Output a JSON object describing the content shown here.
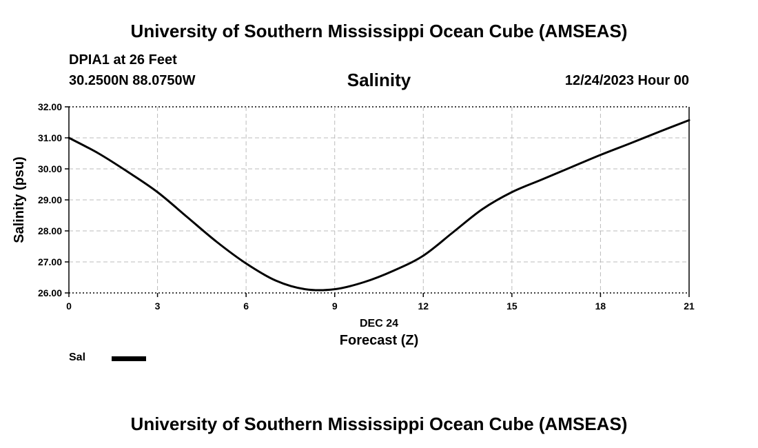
{
  "header": {
    "title": "University of Southern Mississippi Ocean Cube (AMSEAS)",
    "station": "DPIA1 at 26 Feet",
    "coords": "30.2500N  88.0750W",
    "chart_title": "Salinity",
    "run_time": "12/24/2023 Hour 00"
  },
  "footer": {
    "title": "University of Southern Mississippi Ocean Cube (AMSEAS)"
  },
  "legend": {
    "label": "Sal"
  },
  "colors": {
    "line": "#000000",
    "grid": "#bbbbbb",
    "axis": "#000000"
  },
  "chart_data": {
    "type": "line",
    "title": "Salinity",
    "xlabel": "Forecast (Z)",
    "xlabel_date": "DEC 24",
    "ylabel": "Salinity (psu)",
    "xlim": [
      0,
      21
    ],
    "ylim": [
      26,
      32
    ],
    "x_ticks": [
      0,
      3,
      6,
      9,
      12,
      15,
      18,
      21
    ],
    "x_tick_labels": [
      "0",
      "3",
      "6",
      "9",
      "12",
      "15",
      "18",
      "21"
    ],
    "y_ticks": [
      26,
      27,
      28,
      29,
      30,
      31,
      32
    ],
    "y_tick_labels": [
      "26.00",
      "27.00",
      "28.00",
      "29.00",
      "30.00",
      "31.00",
      "32.00"
    ],
    "grid": true,
    "series": [
      {
        "name": "Sal",
        "x": [
          0,
          1,
          2,
          3,
          4,
          5,
          6,
          7,
          8,
          9,
          10,
          11,
          12,
          13,
          14,
          15,
          16,
          17,
          18,
          19,
          20,
          21
        ],
        "values": [
          31.0,
          30.5,
          29.9,
          29.25,
          28.45,
          27.65,
          26.95,
          26.4,
          26.12,
          26.12,
          26.35,
          26.72,
          27.2,
          27.95,
          28.7,
          29.25,
          29.65,
          30.05,
          30.45,
          30.82,
          31.2,
          31.57
        ]
      }
    ]
  }
}
